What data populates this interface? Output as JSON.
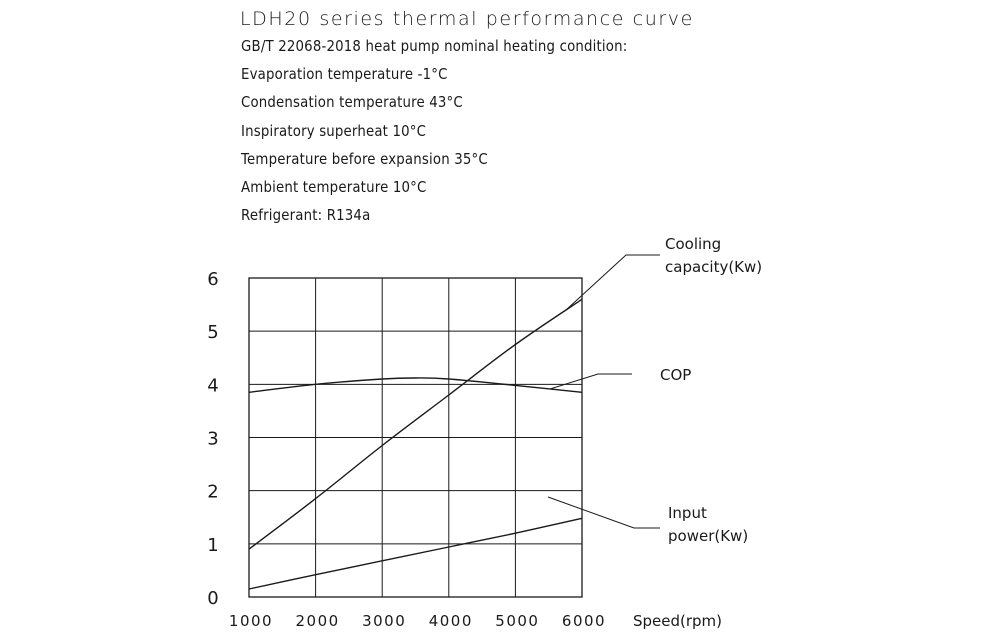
{
  "header": {
    "title": "LDH20 series thermal performance curve",
    "conditions": [
      "GB/T 22068-2018 heat pump nominal heating condition:",
      "Evaporation temperature -1°C",
      "Condensation  temperature 43°C",
      "Inspiratory superheat 10°C",
      "Temperature before expansion 35°C",
      "Ambient  temperature 10°C",
      "Refrigerant: R134a"
    ]
  },
  "chart_data": {
    "type": "line",
    "title": "LDH20 series thermal performance curve",
    "xlabel": "Speed(rpm)",
    "ylabel": "",
    "xlim": [
      1000,
      6000
    ],
    "ylim": [
      0,
      6
    ],
    "x_ticks": [
      "1000",
      "2000",
      "3000",
      "4000",
      "5000",
      "6000"
    ],
    "y_ticks": [
      "0",
      "1",
      "2",
      "3",
      "4",
      "5",
      "6"
    ],
    "grid": true,
    "series": [
      {
        "name": "Cooling capacity(Kw)",
        "label_lines": [
          "Cooling",
          "capacity(Kw)"
        ],
        "x": [
          1000,
          2000,
          3000,
          4000,
          5000,
          6000
        ],
        "values": [
          0.9,
          1.85,
          2.85,
          3.8,
          4.75,
          5.6
        ]
      },
      {
        "name": "COP",
        "label_lines": [
          "COP"
        ],
        "x": [
          1000,
          2000,
          3000,
          3500,
          4000,
          5000,
          6000
        ],
        "values": [
          3.85,
          4.0,
          4.1,
          4.12,
          4.1,
          3.98,
          3.85
        ]
      },
      {
        "name": "Input power(Kw)",
        "label_lines": [
          "Input",
          "power(Kw)"
        ],
        "x": [
          1000,
          2000,
          3000,
          4000,
          5000,
          6000
        ],
        "values": [
          0.15,
          0.42,
          0.68,
          0.94,
          1.2,
          1.48
        ]
      }
    ]
  }
}
